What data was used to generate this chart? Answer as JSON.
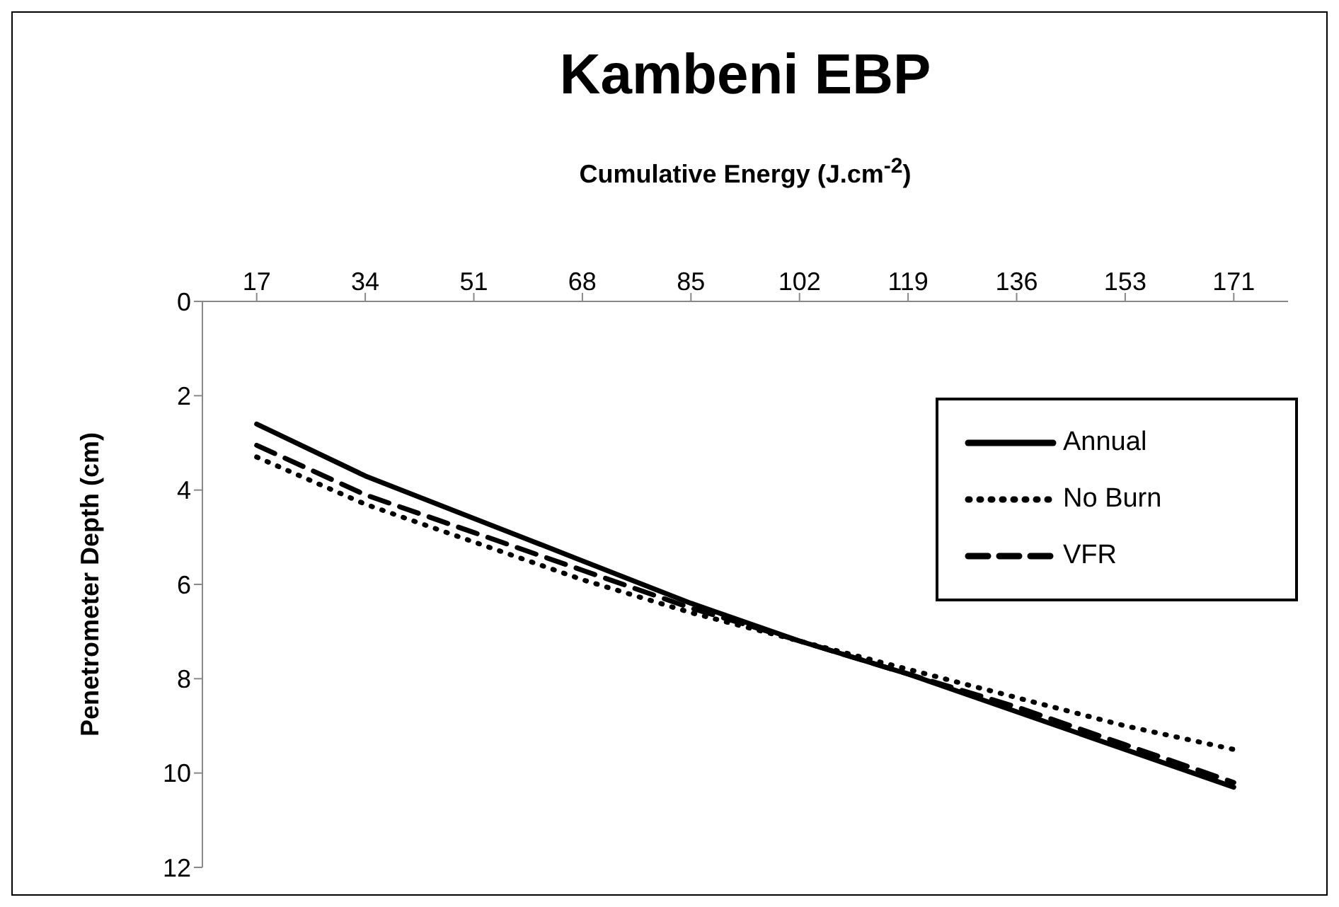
{
  "chart_data": {
    "type": "line",
    "title": "Kambeni EBP",
    "xlabel": "Cumulative Energy (J.cm$^{-2}$)",
    "ylabel": "Penetrometer Depth (cm)",
    "categories": [
      "17",
      "34",
      "51",
      "68",
      "85",
      "102",
      "119",
      "136",
      "153",
      "171"
    ],
    "ylim": [
      12,
      0
    ],
    "yticks": [
      0,
      2,
      4,
      6,
      8,
      10,
      12
    ],
    "grid": false,
    "legend": "top right",
    "marker": "none",
    "series": [
      {
        "name": "Annual",
        "color": "#000000",
        "line_style": "solid",
        "values": [
          2.6,
          3.7,
          4.6,
          5.5,
          6.4,
          7.2,
          7.9,
          8.7,
          9.5,
          10.3
        ]
      },
      {
        "name": "No Burn",
        "color": "#000000",
        "line_style": "dotted",
        "values": [
          3.3,
          4.3,
          5.1,
          5.9,
          6.6,
          7.2,
          7.8,
          8.4,
          9.0,
          9.5
        ]
      },
      {
        "name": "VFR",
        "color": "#000000",
        "line_style": "dashed",
        "values": [
          3.05,
          4.1,
          4.9,
          5.7,
          6.5,
          7.2,
          7.9,
          8.6,
          9.4,
          10.2
        ]
      }
    ]
  }
}
